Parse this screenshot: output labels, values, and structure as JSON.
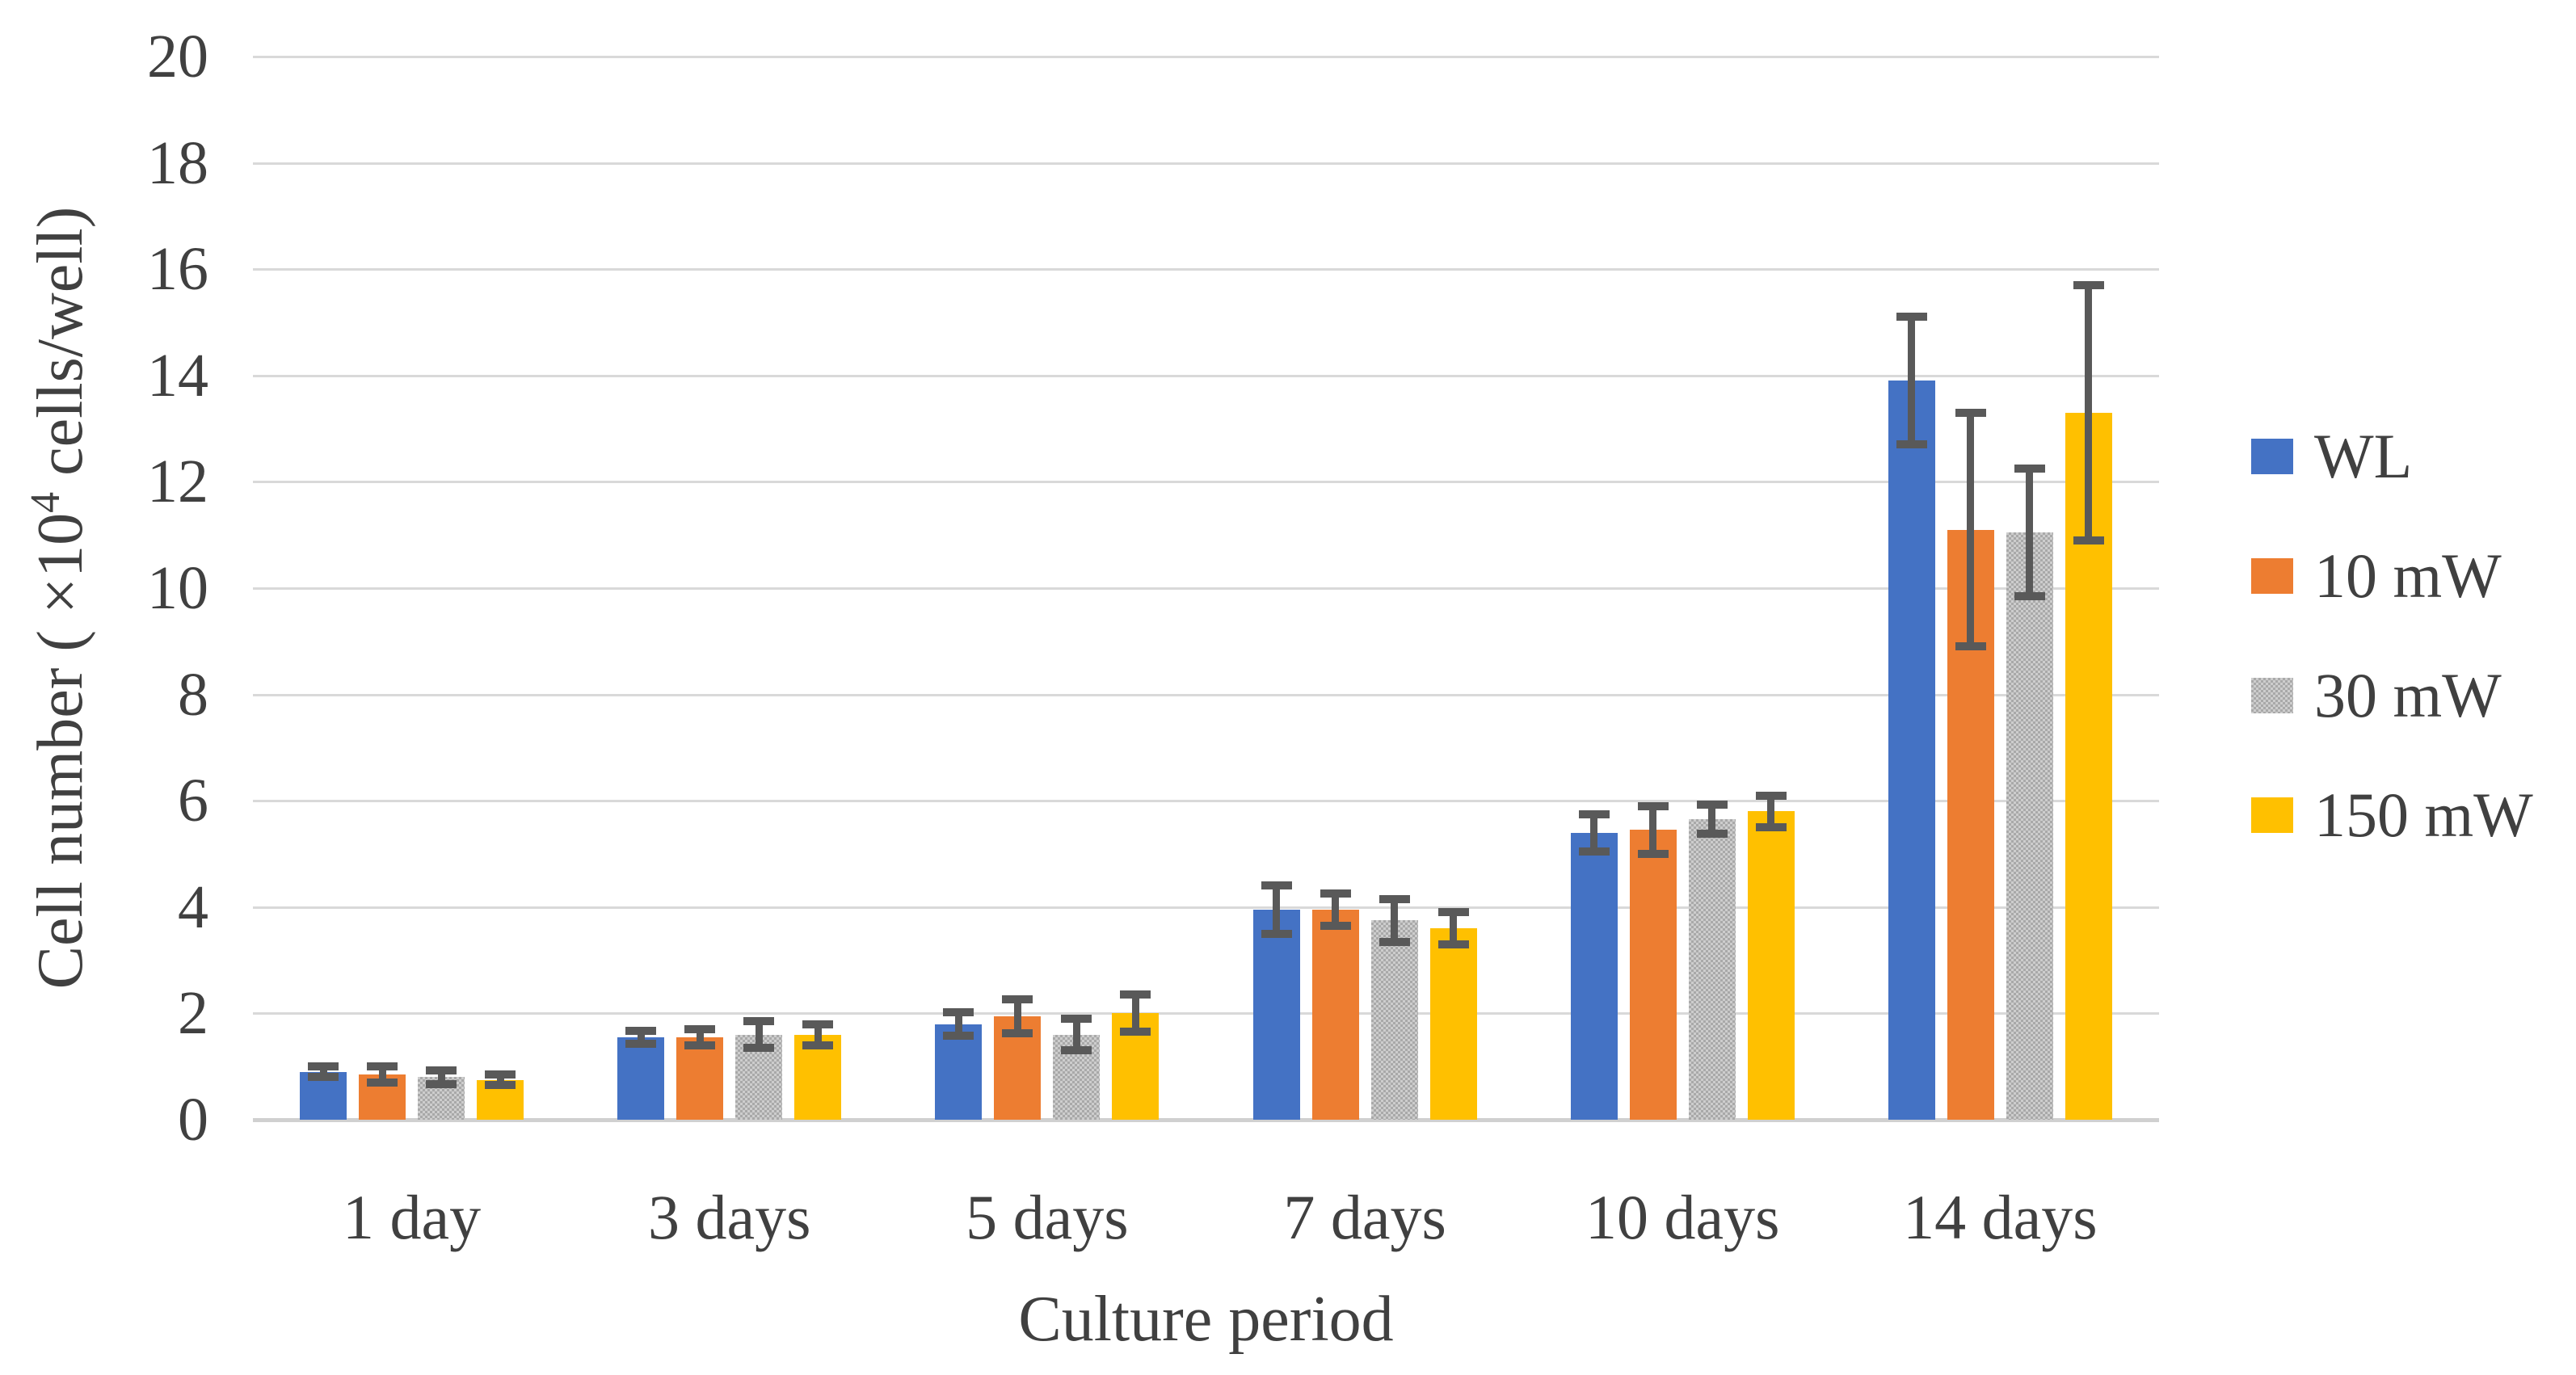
{
  "figure": {
    "background": "#FFFFFF",
    "text_color": "#404040",
    "gridline_color": "#D9D9D9",
    "baseline_color": "#D0D0D0",
    "errorbar_color": "#595959"
  },
  "chart_data": {
    "type": "bar",
    "title": "",
    "xlabel": "Culture period",
    "ylabel": "Cell number ( ×10⁴ cells/well)",
    "ylabel_parts": {
      "prefix": "Cell number ( ×10",
      "superscript": "4",
      "suffix": " cells/well)"
    },
    "ylim": [
      0,
      20
    ],
    "ytick_step": 2,
    "yticks": [
      "0",
      "2",
      "4",
      "6",
      "8",
      "10",
      "12",
      "14",
      "16",
      "18",
      "20"
    ],
    "grid": true,
    "legend_position": "right",
    "categories": [
      "1 day",
      "3 days",
      "5 days",
      "7 days",
      "10 days",
      "14 days"
    ],
    "series": [
      {
        "name": "WL",
        "color": "#4472C4",
        "pattern": "solid",
        "values": [
          0.9,
          1.55,
          1.8,
          3.95,
          5.4,
          13.9
        ],
        "errors": [
          0.1,
          0.12,
          0.22,
          0.45,
          0.35,
          1.2
        ]
      },
      {
        "name": "10 mW",
        "color": "#ED7D31",
        "pattern": "solid",
        "values": [
          0.85,
          1.55,
          1.95,
          3.95,
          5.45,
          11.1
        ],
        "errors": [
          0.15,
          0.15,
          0.32,
          0.3,
          0.45,
          2.2
        ]
      },
      {
        "name": "30 mW",
        "color": "#ACACAC",
        "pattern": "checker",
        "pattern_colors": [
          "#A9A9A9",
          "#CDCDCD"
        ],
        "values": [
          0.8,
          1.6,
          1.6,
          3.75,
          5.65,
          11.05
        ],
        "errors": [
          0.13,
          0.25,
          0.3,
          0.4,
          0.27,
          1.2
        ]
      },
      {
        "name": "150 mW",
        "color": "#FFC000",
        "pattern": "solid",
        "values": [
          0.75,
          1.6,
          2.0,
          3.6,
          5.8,
          13.3
        ],
        "errors": [
          0.1,
          0.2,
          0.35,
          0.3,
          0.3,
          2.4
        ]
      }
    ]
  }
}
